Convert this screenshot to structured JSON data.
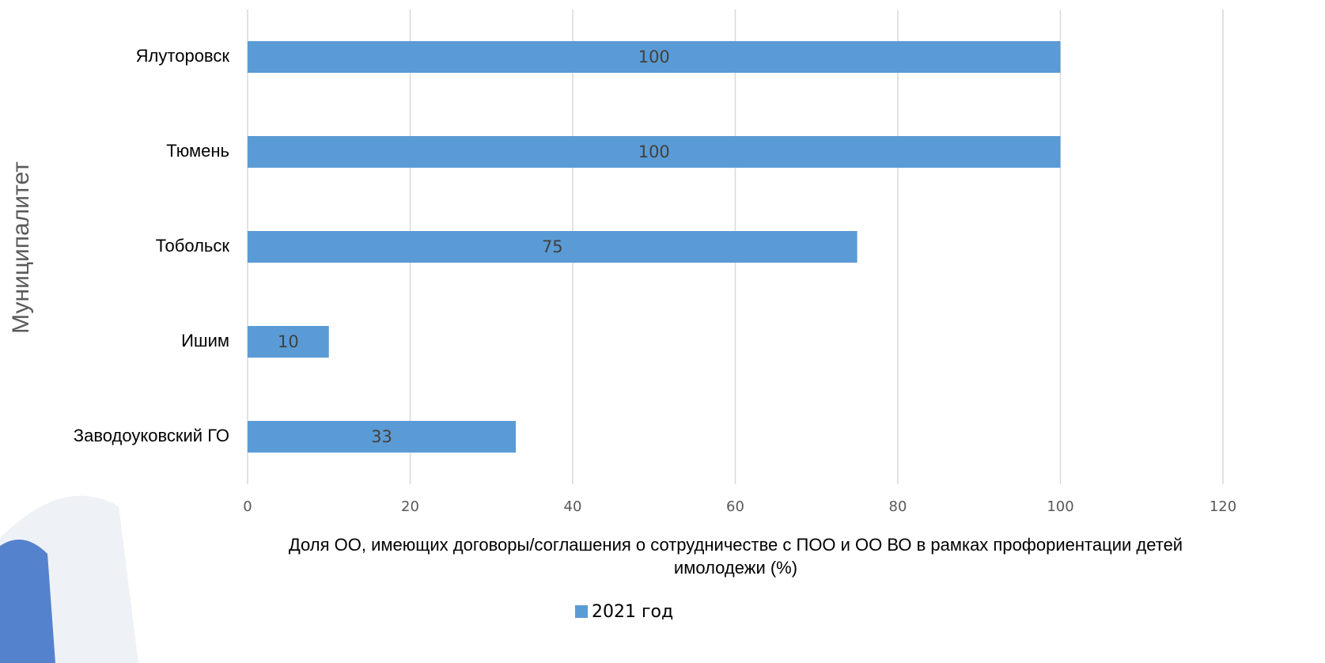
{
  "chart_data": {
    "type": "bar",
    "orientation": "horizontal",
    "categories": [
      "Ялуторовск",
      "Тюмень",
      "Тобольск",
      "Ишим",
      "Заводоуковский ГО"
    ],
    "series": [
      {
        "name": "2021 год",
        "color": "#5b9bd5",
        "values": [
          100,
          100,
          75,
          10,
          33
        ]
      }
    ],
    "xlim": [
      0,
      120
    ],
    "xticks": [
      0,
      20,
      40,
      60,
      80,
      100,
      120
    ],
    "grid": true,
    "x_label": "Доля ОО, имеющих договоры/соглашения о сотрудничестве с ПОО и ОО ВО в рамках профориентации детей имолодежи (%)",
    "y_label": "Муниципалитет",
    "legend": "bottom"
  }
}
